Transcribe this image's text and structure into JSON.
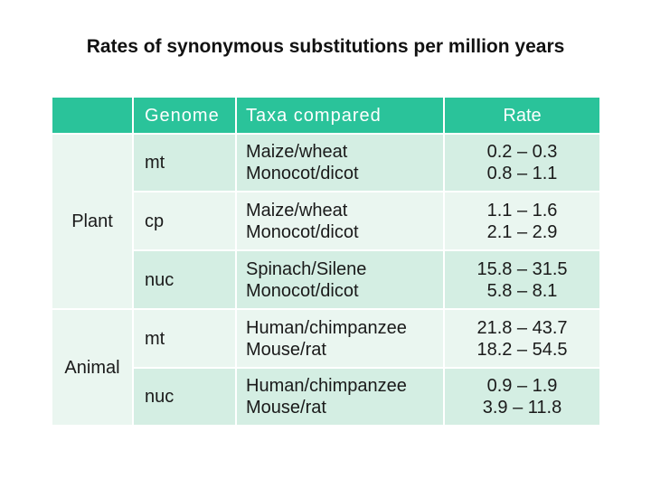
{
  "title": "Rates of synonymous substitutions per million years",
  "headers": {
    "group": "",
    "genome": "Genome",
    "taxa": "Taxa compared",
    "rate": "Rate"
  },
  "groups": [
    {
      "name": "Plant"
    },
    {
      "name": "Animal"
    }
  ],
  "rows": [
    {
      "genome": "mt",
      "taxa1": "Maize/wheat",
      "taxa2": "Monocot/dicot",
      "rate1": "0.2 – 0.3",
      "rate2": "0.8 – 1.1"
    },
    {
      "genome": "cp",
      "taxa1": "Maize/wheat",
      "taxa2": "Monocot/dicot",
      "rate1": "1.1 – 1.6",
      "rate2": "2.1 – 2.9"
    },
    {
      "genome": "nuc",
      "taxa1": "Spinach/Silene",
      "taxa2": "Monocot/dicot",
      "rate1": "15.8 – 31.5",
      "rate2": "5.8 – 8.1"
    },
    {
      "genome": "mt",
      "taxa1": "Human/chimpanzee",
      "taxa2": "Mouse/rat",
      "rate1": "21.8 – 43.7",
      "rate2": "18.2 – 54.5"
    },
    {
      "genome": "nuc",
      "taxa1": "Human/chimpanzee",
      "taxa2": "Mouse/rat",
      "rate1": "0.9 – 1.9",
      "rate2": "3.9 – 11.8"
    }
  ],
  "colors": {
    "header": "#2ac39a",
    "row_dark": "#d4eee3",
    "row_light": "#eaf6f0"
  }
}
